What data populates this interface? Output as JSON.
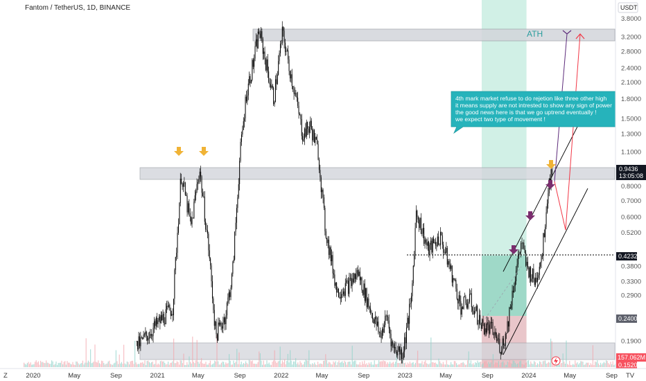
{
  "header": {
    "symbol_title": "Fantom / TetherUS, 1D, BINANCE",
    "currency": "USDT"
  },
  "price_scale": {
    "ticks": [
      "3.8000",
      "3.2000",
      "2.8000",
      "2.4000",
      "2.1000",
      "1.8000",
      "1.5000",
      "1.3000",
      "1.1000",
      "0.9436",
      "0.8000",
      "0.7000",
      "0.6000",
      "0.5200",
      "0.4232",
      "0.3800",
      "0.3300",
      "0.2900",
      "0.2400",
      "0.1900",
      "0.1520"
    ],
    "tick_values": [
      3.8,
      3.2,
      2.8,
      2.4,
      2.1,
      1.8,
      1.5,
      1.3,
      1.1,
      0.9436,
      0.8,
      0.7,
      0.6,
      0.52,
      0.4232,
      0.38,
      0.33,
      0.29,
      0.24,
      0.19,
      0.152
    ],
    "last_price": "0.9436",
    "countdown": "13:05:08",
    "dotted_level": "0.4232",
    "pink_box_level": "0.2400",
    "volume_value": "157.062M",
    "low_label": "0.1520"
  },
  "time_axis": {
    "labels": [
      "2020",
      "May",
      "Sep",
      "2021",
      "May",
      "Sep",
      "2022",
      "May",
      "Sep",
      "2023",
      "May",
      "Sep",
      "2024",
      "May",
      "Sep"
    ],
    "z_label": "Z",
    "logo_label": "TV"
  },
  "annotations": {
    "ath_label": "ATH",
    "callout_lines": [
      "4th mark market refuse to do rejetion like three other high",
      "it means supply are not intrested to show any sign of power",
      "the good news here is that we go uptrend eventually !",
      "we expect two type of movement !"
    ]
  },
  "chart_data": {
    "type": "line",
    "title": "Fantom / TetherUS, 1D, BINANCE",
    "xlabel": "",
    "ylabel": "",
    "scale": "log",
    "ylim": [
      0.15,
      3.9
    ],
    "xlim": [
      "2019-11-01",
      "2024-10-15"
    ],
    "grid": false,
    "series": [
      {
        "x": [
          "2020-11-01",
          "2021-02-15",
          "2021-03-12",
          "2021-04-10",
          "2021-05-05",
          "2021-06-01",
          "2021-06-22",
          "2021-07-20",
          "2021-08-10",
          "2021-09-01",
          "2021-09-20",
          "2021-10-10",
          "2021-10-28",
          "2021-11-20",
          "2021-12-10",
          "2022-01-05",
          "2022-01-20",
          "2022-02-10",
          "2022-03-05",
          "2022-03-28",
          "2022-04-20",
          "2022-05-10",
          "2022-06-15",
          "2022-07-20",
          "2022-08-15",
          "2022-09-10",
          "2022-10-20",
          "2022-11-09",
          "2022-11-25",
          "2022-12-25",
          "2023-01-20",
          "2023-02-03",
          "2023-03-10",
          "2023-04-15",
          "2023-05-20",
          "2023-06-15",
          "2023-07-10",
          "2023-08-15",
          "2023-09-15",
          "2023-10-10",
          "2023-10-25",
          "2023-11-15",
          "2023-12-10",
          "2023-12-25",
          "2024-01-20",
          "2024-02-10",
          "2024-02-28",
          "2024-03-10"
        ],
        "values": [
          0.18,
          0.26,
          0.9,
          0.55,
          0.95,
          0.45,
          0.2,
          0.24,
          0.35,
          1.05,
          1.9,
          2.5,
          3.4,
          2.4,
          1.8,
          3.35,
          2.6,
          1.9,
          1.3,
          1.4,
          1.1,
          0.55,
          0.3,
          0.32,
          0.36,
          0.28,
          0.2,
          0.24,
          0.18,
          0.17,
          0.28,
          0.64,
          0.44,
          0.5,
          0.35,
          0.26,
          0.28,
          0.22,
          0.21,
          0.18,
          0.2,
          0.31,
          0.48,
          0.38,
          0.33,
          0.44,
          0.82,
          0.9436
        ]
      }
    ],
    "horizontal_levels": [
      0.4232
    ]
  }
}
